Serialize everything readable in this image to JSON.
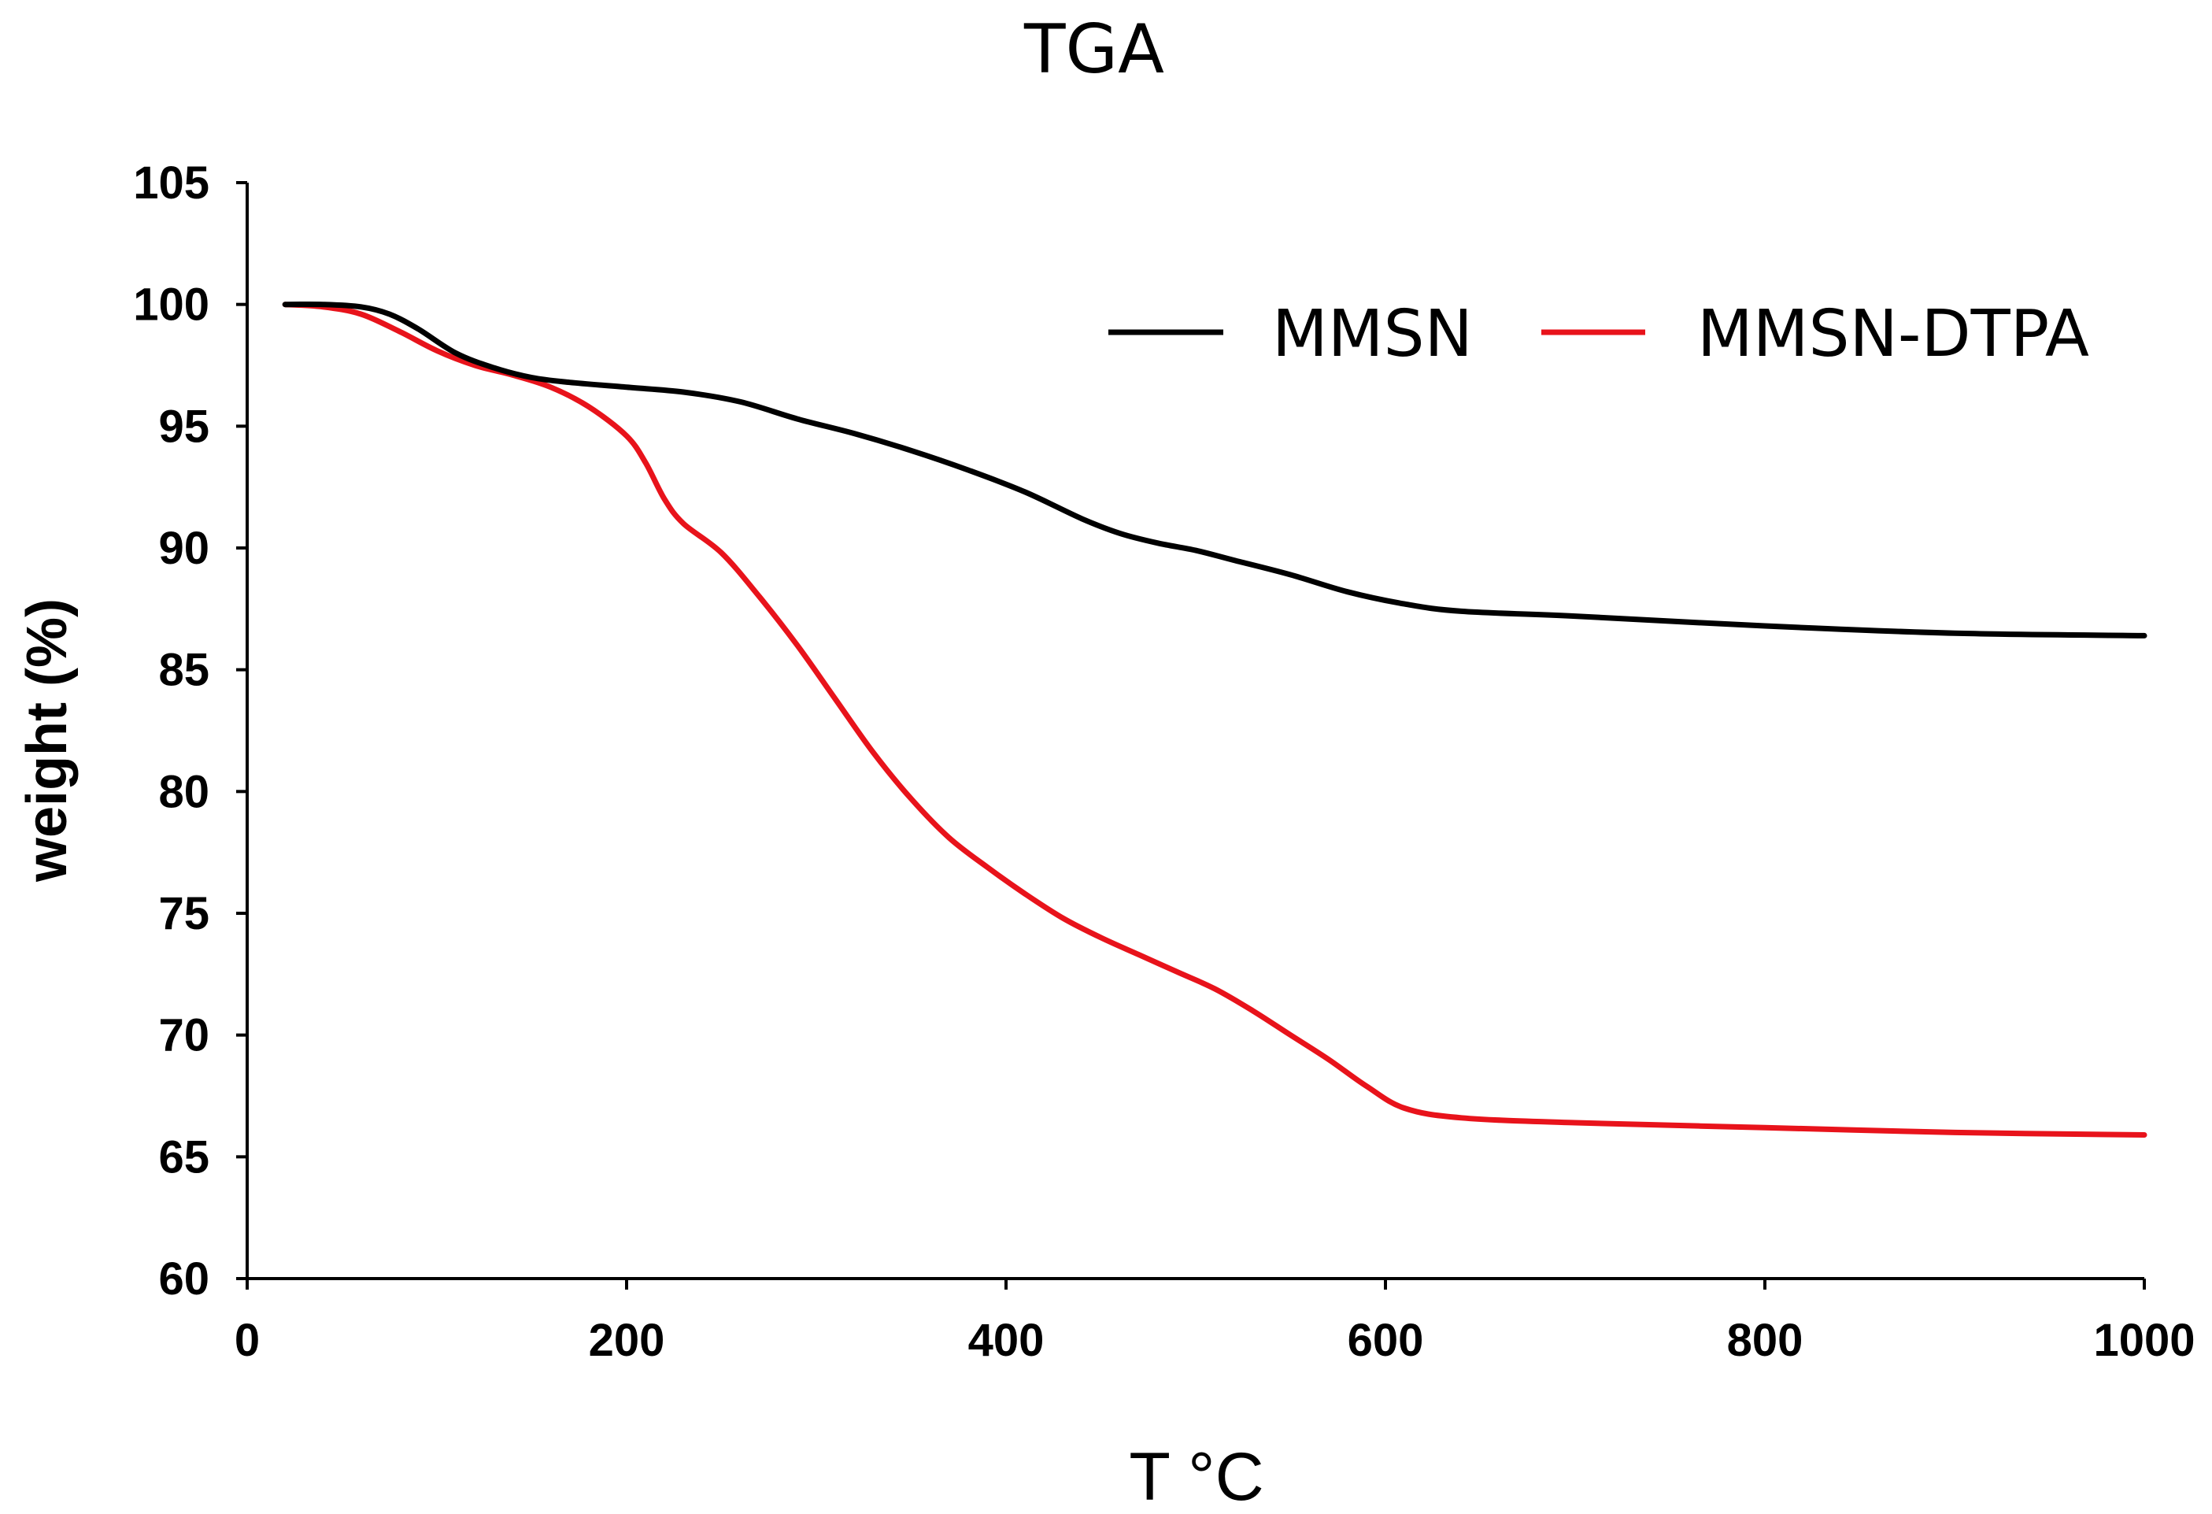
{
  "chart_data": {
    "type": "line",
    "title": "TGA",
    "xlabel": "T °C",
    "ylabel": "weight (%)",
    "xlim": [
      0,
      1000
    ],
    "ylim": [
      60,
      105
    ],
    "xticks": [
      0,
      200,
      400,
      600,
      800,
      1000
    ],
    "yticks": [
      60,
      65,
      70,
      75,
      80,
      85,
      90,
      95,
      100,
      105
    ],
    "grid": false,
    "legend_position": "top-right",
    "series": [
      {
        "name": "MMSN",
        "color": "#000000",
        "x": [
          20,
          40,
          60,
          75,
          90,
          110,
          130,
          150,
          170,
          200,
          230,
          260,
          290,
          320,
          350,
          380,
          410,
          440,
          460,
          480,
          500,
          520,
          550,
          580,
          610,
          640,
          700,
          800,
          900,
          1000
        ],
        "y": [
          100,
          100,
          99.9,
          99.6,
          99.0,
          98.0,
          97.4,
          97.0,
          96.8,
          96.6,
          96.4,
          96.0,
          95.3,
          94.7,
          94.0,
          93.2,
          92.3,
          91.2,
          90.6,
          90.2,
          89.9,
          89.5,
          88.9,
          88.2,
          87.7,
          87.4,
          87.2,
          86.8,
          86.5,
          86.4
        ]
      },
      {
        "name": "MMSN-DTPA",
        "color": "#e8131b",
        "x": [
          20,
          40,
          60,
          80,
          100,
          120,
          140,
          160,
          180,
          200,
          210,
          220,
          230,
          250,
          270,
          290,
          310,
          330,
          350,
          370,
          390,
          410,
          430,
          450,
          470,
          490,
          510,
          530,
          550,
          570,
          590,
          610,
          640,
          700,
          800,
          900,
          1000
        ],
        "y": [
          100,
          99.9,
          99.6,
          98.9,
          98.1,
          97.5,
          97.1,
          96.6,
          95.8,
          94.6,
          93.5,
          92.0,
          91.0,
          89.8,
          88.0,
          86.0,
          83.8,
          81.6,
          79.7,
          78.1,
          76.9,
          75.8,
          74.8,
          74.0,
          73.3,
          72.6,
          71.9,
          71.0,
          70.0,
          69.0,
          67.9,
          67.0,
          66.6,
          66.4,
          66.2,
          66.0,
          65.9
        ]
      }
    ]
  }
}
